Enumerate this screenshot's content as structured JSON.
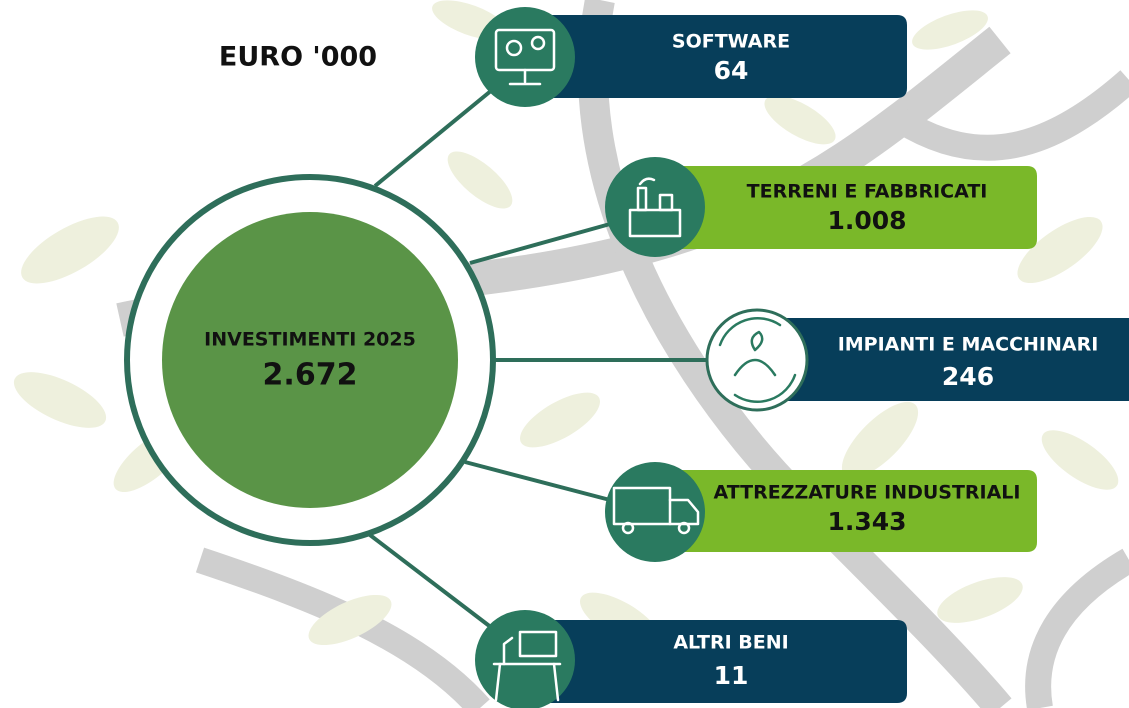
{
  "unit": "EURO '000",
  "center": {
    "label": "INVESTIMENTI 2025",
    "value": "2.672"
  },
  "nodes": [
    {
      "label": "SOFTWARE",
      "value": "64"
    },
    {
      "label": "TERRENI E FABBRICATI",
      "value": "1.008"
    },
    {
      "label": "IMPIANTI E MACCHINARI",
      "value": "246"
    },
    {
      "label": "ATTREZZATURE INDUSTRIALI",
      "value": "1.343"
    },
    {
      "label": "ALTRI BENI",
      "value": "11"
    }
  ]
}
